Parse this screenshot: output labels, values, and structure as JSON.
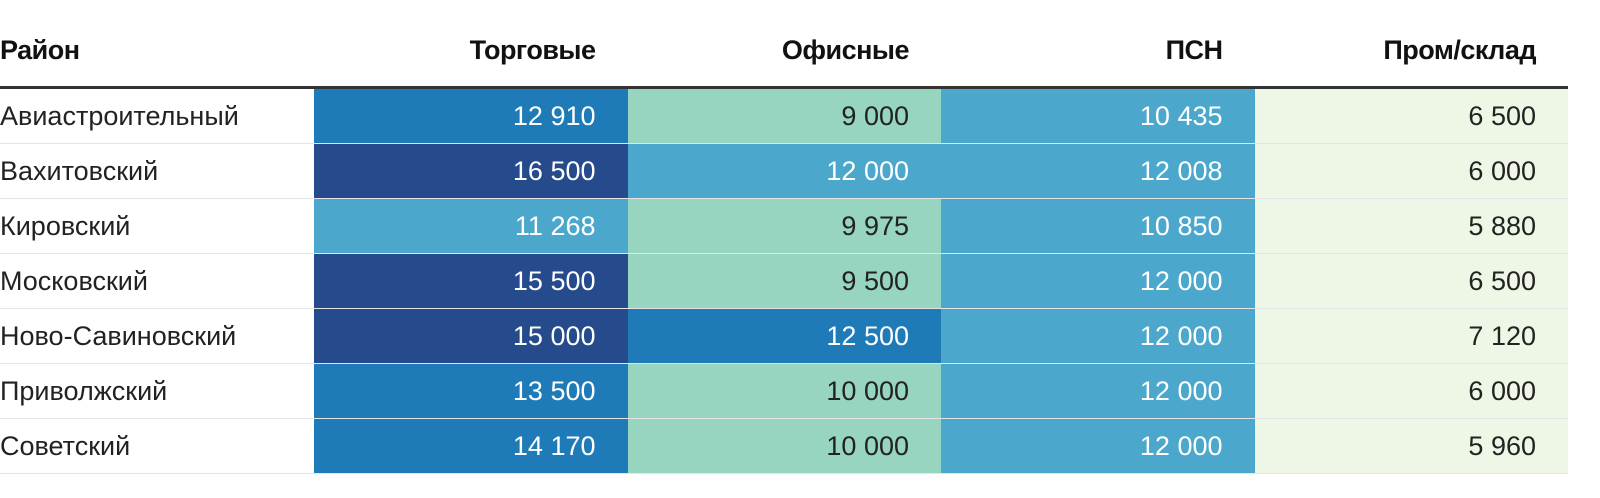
{
  "table": {
    "columns": [
      "Район",
      "Торговые",
      "Офисные",
      "ПСН",
      "Пром/склад"
    ],
    "rows": [
      [
        "Авиастроительный",
        "12 910",
        "9 000",
        "10 435",
        "6 500"
      ],
      [
        "Вахитовский",
        "16 500",
        "12 000",
        "12 008",
        "6 000"
      ],
      [
        "Кировский",
        "11 268",
        "9 975",
        "10 850",
        "5 880"
      ],
      [
        "Московский",
        "15 500",
        "9 500",
        "12 000",
        "6 500"
      ],
      [
        "Ново-Савиновский",
        "15 000",
        "12 500",
        "12 000",
        "7 120"
      ],
      [
        "Приволжский",
        "13 500",
        "10 000",
        "12 000",
        "6 000"
      ],
      [
        "Советский",
        "14 170",
        "10 000",
        "12 000",
        "5 960"
      ]
    ],
    "cell_colors": [
      [
        "#1f7ab8",
        "#97d5c0",
        "#4ba8cc",
        "#eef7e6"
      ],
      [
        "#254b8c",
        "#4ba8cc",
        "#4ba8cc",
        "#eef7e6"
      ],
      [
        "#4ba8cc",
        "#97d5c0",
        "#4ba8cc",
        "#eef7e6"
      ],
      [
        "#254b8c",
        "#97d5c0",
        "#4ba8cc",
        "#eef7e6"
      ],
      [
        "#254b8c",
        "#1f7ab8",
        "#4ba8cc",
        "#eef7e6"
      ],
      [
        "#1f7ab8",
        "#97d5c0",
        "#4ba8cc",
        "#eef7e6"
      ],
      [
        "#1f7ab8",
        "#97d5c0",
        "#4ba8cc",
        "#eef7e6"
      ]
    ]
  }
}
